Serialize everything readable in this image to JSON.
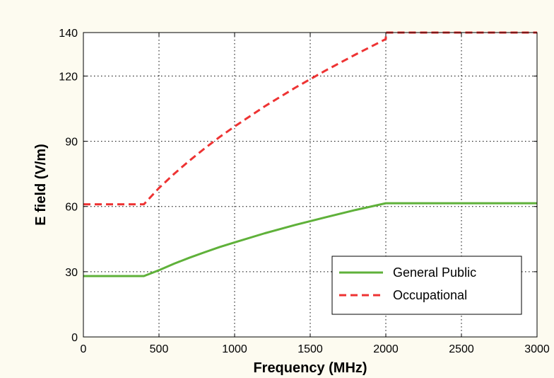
{
  "chart_data": {
    "type": "line",
    "title": "",
    "xlabel": "Frequency (MHz)",
    "ylabel": "E field (V/m)",
    "xlim": [
      0,
      3000
    ],
    "ylim": [
      0,
      140
    ],
    "xticks": [
      0,
      500,
      1000,
      1500,
      2000,
      2500,
      3000
    ],
    "xtick_labels": [
      "0",
      "500",
      "1000",
      "1500",
      "2000",
      "2500",
      "3000"
    ],
    "yticks": [
      0,
      30,
      60,
      90,
      120,
      140
    ],
    "ytick_labels": [
      "0",
      "30",
      "60",
      "90",
      "120",
      "140"
    ],
    "grid": true,
    "legend_position": "bottom-right",
    "series": [
      {
        "name": "General Public",
        "color": "#5fb13a",
        "style": "solid",
        "x": [
          0,
          400,
          500,
          600,
          700,
          800,
          900,
          1000,
          1200,
          1400,
          1600,
          1800,
          2000,
          3000
        ],
        "y": [
          28,
          28,
          30.7,
          33.7,
          36.4,
          38.9,
          41.3,
          43.5,
          47.7,
          51.5,
          55.0,
          58.4,
          61.5,
          61.5
        ]
      },
      {
        "name": "Occupational",
        "color": "#ee3333",
        "style": "dashed",
        "x": [
          0,
          400,
          500,
          600,
          700,
          800,
          900,
          1000,
          1200,
          1400,
          1600,
          1800,
          2000,
          2000,
          3000
        ],
        "y": [
          61,
          61,
          68.5,
          75,
          81,
          86.6,
          91.9,
          96.8,
          106.1,
          114.6,
          122.5,
          129.9,
          137,
          140,
          140
        ]
      }
    ]
  }
}
